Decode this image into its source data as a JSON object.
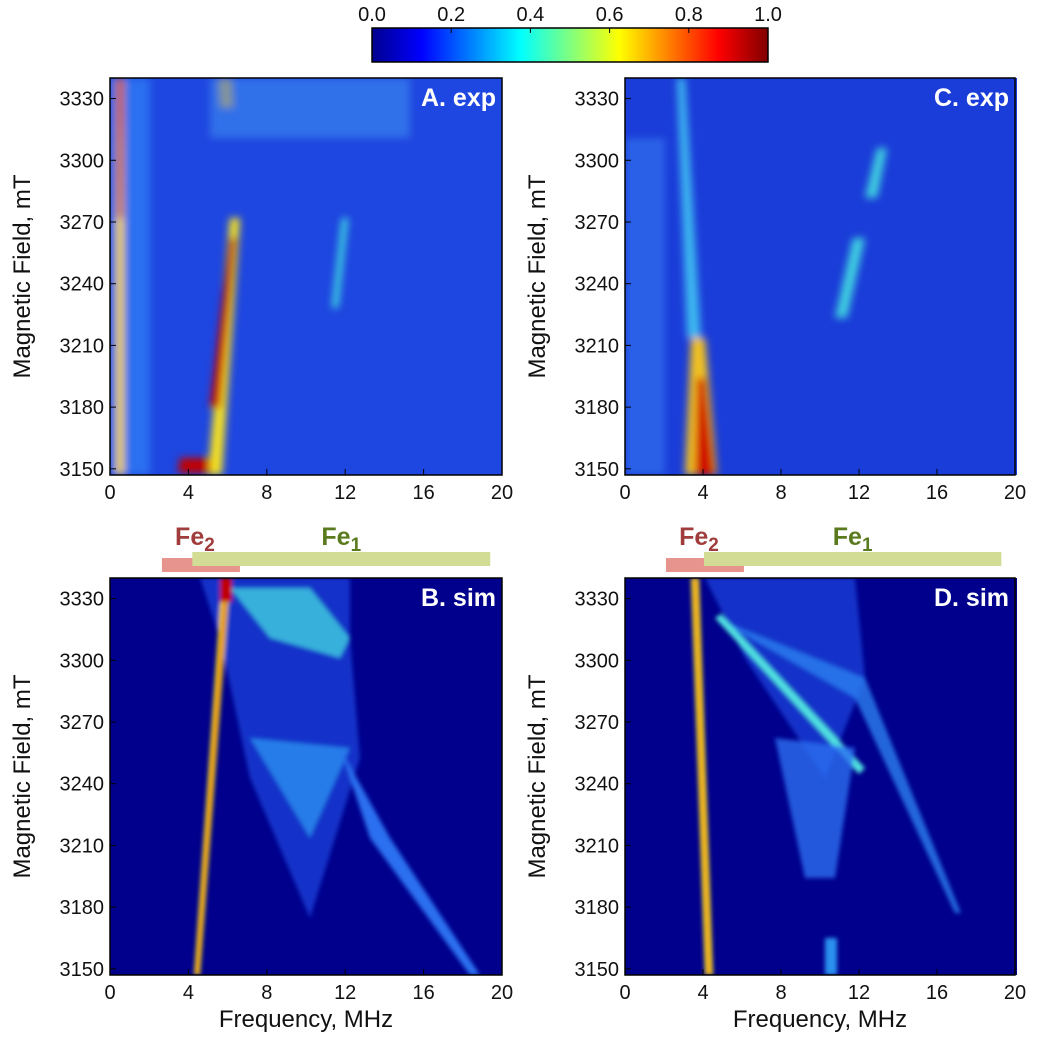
{
  "chart_data": [
    {
      "type": "heatmap",
      "title": "A. exp",
      "ylabel": "Magnetic Field, mT",
      "xlim": [
        0,
        20
      ],
      "ylim": [
        3147,
        3340
      ],
      "xticks": [
        0,
        4,
        8,
        12,
        16,
        20
      ],
      "yticks": [
        3150,
        3180,
        3210,
        3240,
        3270,
        3300,
        3330
      ]
    },
    {
      "type": "heatmap",
      "title": "B. sim",
      "xlabel": "Frequency, MHz",
      "ylabel": "Magnetic Field, mT",
      "xlim": [
        0,
        20
      ],
      "ylim": [
        3147,
        3340
      ],
      "xticks": [
        0,
        4,
        8,
        12,
        16,
        20
      ],
      "yticks": [
        3150,
        3180,
        3210,
        3240,
        3270,
        3300,
        3330
      ]
    },
    {
      "type": "heatmap",
      "title": "C. exp",
      "ylabel": "Magnetic Field, mT",
      "xlim": [
        0,
        20
      ],
      "ylim": [
        3147,
        3340
      ],
      "xticks": [
        0,
        4,
        8,
        12,
        16,
        20
      ],
      "yticks": [
        3150,
        3180,
        3210,
        3240,
        3270,
        3300,
        3330
      ]
    },
    {
      "type": "heatmap",
      "title": "D. sim",
      "xlabel": "Frequency, MHz",
      "ylabel": "Magnetic Field, mT",
      "xlim": [
        0,
        20
      ],
      "ylim": [
        3147,
        3340
      ],
      "xticks": [
        0,
        4,
        8,
        12,
        16,
        20
      ],
      "yticks": [
        3150,
        3180,
        3210,
        3240,
        3270,
        3300,
        3330
      ]
    }
  ],
  "colorbar": {
    "colormap": "jet",
    "lim": [
      0,
      1
    ],
    "ticks": [
      {
        "value": 0,
        "label": "0.0"
      },
      0.2,
      0.4,
      0.6,
      0.8,
      {
        "value": 1,
        "label": "1.0"
      }
    ]
  },
  "bands": [
    [
      {
        "label": "Fe",
        "subscript": "2",
        "range": [
          2.65,
          6.63
        ],
        "color": "#e8948e",
        "text_color": "#a03c3c"
      },
      {
        "label": "Fe",
        "subscript": "1",
        "range": [
          4.2,
          19.4
        ],
        "color": "#d2dc94",
        "text_color": "#5a7a1e"
      }
    ],
    [
      {
        "label": "Fe",
        "subscript": "2",
        "range": [
          2.1,
          6.1
        ],
        "color": "#e8948e",
        "text_color": "#a03c3c"
      },
      {
        "label": "Fe",
        "subscript": "1",
        "range": [
          4.05,
          19.3
        ],
        "color": "#d2dc94",
        "text_color": "#5a7a1e"
      }
    ]
  ]
}
